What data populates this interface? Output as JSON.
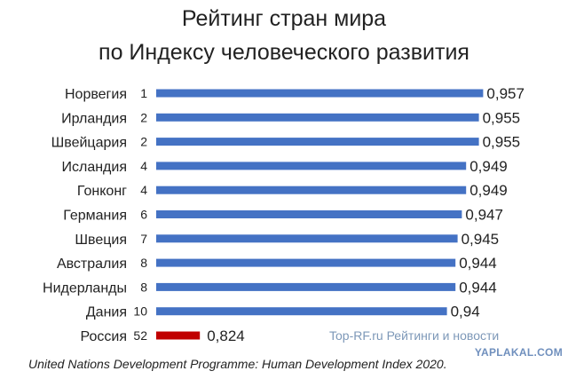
{
  "title_line1": "Рейтинг стран мира",
  "title_line2": "по Индексу человеческого развития",
  "source_note": "United Nations Development Programme: Human Development Index 2020.",
  "watermark_source": "Top-RF.ru Рейтинги и новости",
  "watermark_site": "YAPLAKAL.COM",
  "colors": {
    "bar": "#4472c4",
    "highlight": "#c00000"
  },
  "chart_data": {
    "type": "bar",
    "orientation": "horizontal",
    "categories": [
      "Норвегия",
      "Ирландия",
      "Швейцария",
      "Исландия",
      "Гонконг",
      "Германия",
      "Швеция",
      "Австралия",
      "Нидерланды",
      "Дания",
      "Россия"
    ],
    "ranks": [
      "1",
      "2",
      "2",
      "4",
      "4",
      "6",
      "7",
      "8",
      "8",
      "10",
      "52"
    ],
    "values": [
      0.957,
      0.955,
      0.955,
      0.949,
      0.949,
      0.947,
      0.945,
      0.944,
      0.944,
      0.94,
      0.824
    ],
    "value_labels": [
      "0,957",
      "0,955",
      "0,955",
      "0,949",
      "0,949",
      "0,947",
      "0,945",
      "0,944",
      "0,944",
      "0,94",
      "0,824"
    ],
    "highlight_index": 10,
    "grid": false,
    "title": "Рейтинг стран мира по Индексу человеческого развития",
    "xlabel": "",
    "ylabel": ""
  }
}
